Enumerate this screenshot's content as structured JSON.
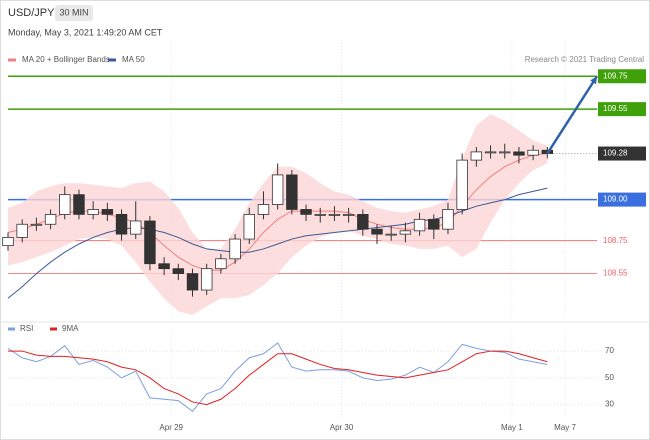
{
  "header": {
    "symbol": "USD/JPY",
    "timeframe": "30 MIN",
    "datetime": "Monday, May 3, 2021 1:49:20 AM CET",
    "credit": "Research © 2021 Trading Central"
  },
  "chart_data": [
    {
      "type": "candlestick",
      "x": [
        0,
        4,
        8,
        12,
        16,
        20,
        24,
        28,
        32,
        36,
        40,
        44,
        48,
        52,
        56,
        60,
        64,
        68,
        72,
        76,
        80,
        84,
        88,
        92,
        96,
        100,
        104,
        108,
        112,
        116,
        120,
        124,
        128,
        132,
        136,
        140,
        144,
        148,
        152
      ],
      "open": [
        108.72,
        108.77,
        108.85,
        108.85,
        108.91,
        109.03,
        108.91,
        108.94,
        108.91,
        108.79,
        108.87,
        108.61,
        108.58,
        108.55,
        108.45,
        108.58,
        108.64,
        108.76,
        108.91,
        108.97,
        109.15,
        108.94,
        108.91,
        108.91,
        108.91,
        108.91,
        108.82,
        108.79,
        108.79,
        108.81,
        108.88,
        108.82,
        108.94,
        109.24,
        109.29,
        109.29,
        109.29,
        109.27,
        109.3
      ],
      "high": [
        108.8,
        108.88,
        108.89,
        108.94,
        109.08,
        109.06,
        108.99,
        108.98,
        108.94,
        108.99,
        108.9,
        108.65,
        108.61,
        108.58,
        108.61,
        108.67,
        108.79,
        108.95,
        109.05,
        109.22,
        109.18,
        108.97,
        108.95,
        108.96,
        108.95,
        108.94,
        108.85,
        108.84,
        108.86,
        108.92,
        108.91,
        108.98,
        109.28,
        109.32,
        109.33,
        109.34,
        109.32,
        109.33,
        109.32
      ],
      "low": [
        108.69,
        108.74,
        108.81,
        108.82,
        108.88,
        108.88,
        108.88,
        108.87,
        108.75,
        108.76,
        108.57,
        108.54,
        108.51,
        108.41,
        108.42,
        108.55,
        108.61,
        108.73,
        108.88,
        108.94,
        108.91,
        108.87,
        108.86,
        108.87,
        108.86,
        108.78,
        108.73,
        108.75,
        108.74,
        108.78,
        108.76,
        108.79,
        108.91,
        109.2,
        109.25,
        109.25,
        109.22,
        109.24,
        109.25
      ],
      "close": [
        108.77,
        108.85,
        108.85,
        108.91,
        109.03,
        108.91,
        108.94,
        108.91,
        108.79,
        108.87,
        108.61,
        108.58,
        108.55,
        108.45,
        108.58,
        108.64,
        108.76,
        108.91,
        108.97,
        109.15,
        108.94,
        108.91,
        108.91,
        108.91,
        108.91,
        108.82,
        108.79,
        108.79,
        108.81,
        108.88,
        108.82,
        108.94,
        109.24,
        109.29,
        109.29,
        109.29,
        109.27,
        109.3,
        109.28
      ],
      "up_color": "#ffffff",
      "down_color": "#333333",
      "xlim": [
        0,
        166
      ],
      "ylim": [
        108.28,
        109.94
      ],
      "series": [
        {
          "name": "MA 20 + Bollinger Bands",
          "color": "#f08080",
          "band_color": "#fcd6d6",
          "values": [
            108.8,
            108.82,
            108.85,
            108.88,
            108.92,
            108.93,
            108.93,
            108.91,
            108.89,
            108.86,
            108.8,
            108.72,
            108.65,
            108.6,
            108.57,
            108.57,
            108.62,
            108.7,
            108.8,
            108.88,
            108.93,
            108.93,
            108.93,
            108.93,
            108.92,
            108.88,
            108.85,
            108.83,
            108.82,
            108.82,
            108.83,
            108.86,
            108.96,
            109.06,
            109.14,
            109.2,
            109.24,
            109.27,
            109.28
          ],
          "upper": [
            108.95,
            108.98,
            109.05,
            109.08,
            109.1,
            109.1,
            109.09,
            109.08,
            109.07,
            109.1,
            109.11,
            109.05,
            108.95,
            108.8,
            108.7,
            108.7,
            108.82,
            108.98,
            109.1,
            109.2,
            109.2,
            109.16,
            109.1,
            109.05,
            109.03,
            108.99,
            108.95,
            108.93,
            108.92,
            108.94,
            108.96,
            109.0,
            109.25,
            109.45,
            109.52,
            109.48,
            109.42,
            109.36,
            109.33
          ],
          "lower": [
            108.6,
            108.62,
            108.65,
            108.68,
            108.72,
            108.76,
            108.77,
            108.76,
            108.72,
            108.62,
            108.5,
            108.4,
            108.32,
            108.3,
            108.35,
            108.4,
            108.4,
            108.42,
            108.48,
            108.55,
            108.65,
            108.72,
            108.77,
            108.8,
            108.81,
            108.78,
            108.76,
            108.73,
            108.72,
            108.7,
            108.7,
            108.72,
            108.65,
            108.7,
            108.86,
            109.0,
            109.1,
            109.18,
            109.22
          ]
        },
        {
          "name": "MA 50",
          "color": "#3d5a99",
          "values": [
            108.4,
            108.47,
            108.55,
            108.62,
            108.68,
            108.73,
            108.77,
            108.8,
            108.82,
            108.83,
            108.82,
            108.8,
            108.77,
            108.73,
            108.7,
            108.69,
            108.68,
            108.68,
            108.7,
            108.73,
            108.76,
            108.78,
            108.79,
            108.8,
            108.81,
            108.82,
            108.83,
            108.84,
            108.85,
            108.87,
            108.88,
            108.9,
            108.93,
            108.96,
            108.98,
            109.0,
            109.03,
            109.05,
            109.07
          ]
        }
      ],
      "levels": [
        {
          "value": 109.75,
          "color": "#3fa00a",
          "style": "box"
        },
        {
          "value": 109.55,
          "color": "#3fa00a",
          "style": "box"
        },
        {
          "value": 109.28,
          "color": "#333333",
          "style": "dotted-box"
        },
        {
          "value": 109,
          "label": "109.00",
          "color": "#3b6fe0",
          "style": "box"
        },
        {
          "value": 108.75,
          "color": "#f06060",
          "style": "text"
        },
        {
          "value": 108.55,
          "color": "#f06060",
          "style": "text"
        }
      ],
      "arrow": {
        "x": [
          152,
          166
        ],
        "y": [
          109.28,
          109.75
        ],
        "color": "#2f63a8"
      }
    },
    {
      "type": "line",
      "x": [
        0,
        4,
        8,
        12,
        16,
        20,
        24,
        28,
        32,
        36,
        40,
        44,
        48,
        52,
        56,
        60,
        64,
        68,
        72,
        76,
        80,
        84,
        88,
        92,
        96,
        100,
        104,
        108,
        112,
        116,
        120,
        124,
        128,
        132,
        136,
        140,
        144,
        148,
        152
      ],
      "xlim": [
        0,
        166
      ],
      "ylim": [
        20,
        82
      ],
      "yticks": [
        30,
        50,
        70
      ],
      "xticks": [
        {
          "value": 46,
          "label": "Apr 29"
        },
        {
          "value": 94,
          "label": "Apr 30"
        },
        {
          "value": 142,
          "label": "May 1"
        },
        {
          "value": 157,
          "label": "May 7"
        }
      ],
      "series": [
        {
          "name": "RSI",
          "color": "#7b9fe0",
          "values": [
            72,
            65,
            62,
            66,
            74,
            60,
            63,
            58,
            50,
            55,
            35,
            34,
            33,
            25,
            38,
            42,
            55,
            65,
            68,
            76,
            58,
            55,
            56,
            56,
            55,
            50,
            48,
            49,
            52,
            58,
            54,
            62,
            75,
            72,
            70,
            69,
            64,
            62,
            60
          ]
        },
        {
          "name": "9MA",
          "color": "#e02020",
          "values": [
            70,
            70,
            67,
            66,
            66,
            65,
            64,
            62,
            58,
            56,
            50,
            42,
            38,
            32,
            30,
            34,
            42,
            52,
            60,
            68,
            68,
            64,
            60,
            57,
            56,
            54,
            52,
            51,
            50,
            52,
            54,
            56,
            62,
            68,
            70,
            70,
            68,
            65,
            62
          ]
        }
      ]
    }
  ]
}
